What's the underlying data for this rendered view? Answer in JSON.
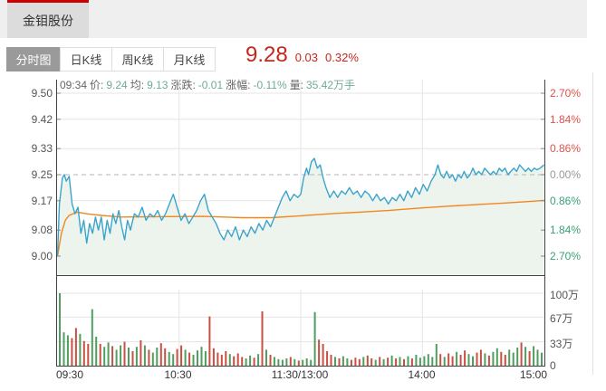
{
  "window": {
    "stock_tab_label": "金钼股份"
  },
  "tabs": {
    "items": [
      {
        "name": "tab-minute-chart",
        "label": "分时图",
        "active": true
      },
      {
        "name": "tab-daily-k",
        "label": "日K线",
        "active": false
      },
      {
        "name": "tab-weekly-k",
        "label": "周K线",
        "active": false
      },
      {
        "name": "tab-monthly-k",
        "label": "月K线",
        "active": false
      }
    ]
  },
  "quote": {
    "price": "9.28",
    "change": "0.03",
    "change_pct": "0.32%"
  },
  "info_line": {
    "time": "09:34",
    "fields": [
      {
        "label": "价:",
        "value": "9.24"
      },
      {
        "label": "均:",
        "value": "9.13"
      },
      {
        "label": "涨跌:",
        "value": "-0.01"
      },
      {
        "label": "涨幅:",
        "value": "-0.11%"
      },
      {
        "label": "量:",
        "value": "35.42万手"
      }
    ]
  },
  "axes": {
    "price_labels": [
      "9.50",
      "9.42",
      "9.33",
      "9.25",
      "9.17",
      "9.08",
      "9.00"
    ],
    "pct_labels": [
      {
        "text": "2.70%",
        "tone": "up"
      },
      {
        "text": "1.84%",
        "tone": "up"
      },
      {
        "text": "0.86%",
        "tone": "up"
      },
      {
        "text": "0.00%",
        "tone": "flat"
      },
      {
        "text": "0.86%",
        "tone": "down"
      },
      {
        "text": "1.84%",
        "tone": "down"
      },
      {
        "text": "2.70%",
        "tone": "down"
      }
    ],
    "volume_labels": [
      {
        "text": "100万",
        "value": 100
      },
      {
        "text": "67万",
        "value": 67
      },
      {
        "text": "33万",
        "value": 33
      },
      {
        "text": "0",
        "value": 0
      }
    ],
    "time_labels": [
      "09:30",
      "10:30",
      "11:30/13:00",
      "14:00",
      "15:00"
    ]
  },
  "colors": {
    "accent_red": "#cc0000",
    "quote_red": "#c5271d",
    "price_line": "#3ba4cb",
    "avg_line": "#f0881c",
    "area_fill": "#edf4ee",
    "vol_up": "#4f9d5f",
    "vol_down": "#c94f43",
    "grid": "#e5e5e5",
    "prev_close_dash": "#b3b3b3",
    "pane_border": "#424242"
  },
  "chart_data": {
    "type": "line",
    "title": "金钼股份 分时图 (intraday)",
    "prev_close": 9.25,
    "last_price": 9.28,
    "ylim": [
      9.0,
      9.5
    ],
    "pct_range": [
      -2.7,
      2.7
    ],
    "volume_ylim_wan": [
      0,
      105
    ],
    "x_range": [
      "09:30",
      "15:00"
    ],
    "grid": true,
    "price_series": [
      [
        0.0,
        9.0
      ],
      [
        0.004,
        9.16
      ],
      [
        0.01,
        9.24
      ],
      [
        0.014,
        9.25
      ],
      [
        0.018,
        9.23
      ],
      [
        0.024,
        9.245
      ],
      [
        0.03,
        9.16
      ],
      [
        0.036,
        9.13
      ],
      [
        0.042,
        9.15
      ],
      [
        0.048,
        9.07
      ],
      [
        0.054,
        9.11
      ],
      [
        0.06,
        9.04
      ],
      [
        0.066,
        9.1
      ],
      [
        0.072,
        9.07
      ],
      [
        0.078,
        9.12
      ],
      [
        0.084,
        9.08
      ],
      [
        0.09,
        9.12
      ],
      [
        0.096,
        9.05
      ],
      [
        0.102,
        9.11
      ],
      [
        0.108,
        9.07
      ],
      [
        0.114,
        9.13
      ],
      [
        0.12,
        9.1
      ],
      [
        0.126,
        9.14
      ],
      [
        0.132,
        9.09
      ],
      [
        0.138,
        9.05
      ],
      [
        0.144,
        9.11
      ],
      [
        0.15,
        9.08
      ],
      [
        0.158,
        9.13
      ],
      [
        0.166,
        9.12
      ],
      [
        0.174,
        9.15
      ],
      [
        0.182,
        9.11
      ],
      [
        0.19,
        9.13
      ],
      [
        0.198,
        9.12
      ],
      [
        0.206,
        9.14
      ],
      [
        0.214,
        9.11
      ],
      [
        0.222,
        9.13
      ],
      [
        0.23,
        9.16
      ],
      [
        0.238,
        9.19
      ],
      [
        0.246,
        9.15
      ],
      [
        0.254,
        9.11
      ],
      [
        0.262,
        9.13
      ],
      [
        0.27,
        9.1
      ],
      [
        0.278,
        9.12
      ],
      [
        0.286,
        9.14
      ],
      [
        0.294,
        9.17
      ],
      [
        0.302,
        9.19
      ],
      [
        0.31,
        9.14
      ],
      [
        0.318,
        9.12
      ],
      [
        0.326,
        9.1
      ],
      [
        0.334,
        9.07
      ],
      [
        0.342,
        9.05
      ],
      [
        0.35,
        9.08
      ],
      [
        0.358,
        9.06
      ],
      [
        0.366,
        9.09
      ],
      [
        0.374,
        9.05
      ],
      [
        0.382,
        9.08
      ],
      [
        0.39,
        9.06
      ],
      [
        0.398,
        9.09
      ],
      [
        0.406,
        9.07
      ],
      [
        0.414,
        9.1
      ],
      [
        0.422,
        9.08
      ],
      [
        0.43,
        9.11
      ],
      [
        0.438,
        9.09
      ],
      [
        0.446,
        9.12
      ],
      [
        0.454,
        9.15
      ],
      [
        0.462,
        9.18
      ],
      [
        0.47,
        9.2
      ],
      [
        0.478,
        9.17
      ],
      [
        0.486,
        9.19
      ],
      [
        0.494,
        9.18
      ],
      [
        0.5,
        9.19
      ],
      [
        0.506,
        9.24
      ],
      [
        0.512,
        9.27
      ],
      [
        0.516,
        9.25
      ],
      [
        0.522,
        9.29
      ],
      [
        0.528,
        9.3
      ],
      [
        0.534,
        9.27
      ],
      [
        0.54,
        9.28
      ],
      [
        0.546,
        9.24
      ],
      [
        0.552,
        9.21
      ],
      [
        0.56,
        9.18
      ],
      [
        0.568,
        9.2
      ],
      [
        0.576,
        9.18
      ],
      [
        0.584,
        9.2
      ],
      [
        0.592,
        9.19
      ],
      [
        0.6,
        9.21
      ],
      [
        0.608,
        9.19
      ],
      [
        0.616,
        9.2
      ],
      [
        0.624,
        9.18
      ],
      [
        0.632,
        9.2
      ],
      [
        0.64,
        9.19
      ],
      [
        0.648,
        9.17
      ],
      [
        0.656,
        9.19
      ],
      [
        0.664,
        9.17
      ],
      [
        0.672,
        9.18
      ],
      [
        0.68,
        9.16
      ],
      [
        0.688,
        9.18
      ],
      [
        0.696,
        9.17
      ],
      [
        0.704,
        9.19
      ],
      [
        0.712,
        9.17
      ],
      [
        0.72,
        9.2
      ],
      [
        0.728,
        9.18
      ],
      [
        0.736,
        9.21
      ],
      [
        0.744,
        9.19
      ],
      [
        0.752,
        9.22
      ],
      [
        0.76,
        9.2
      ],
      [
        0.768,
        9.23
      ],
      [
        0.776,
        9.25
      ],
      [
        0.782,
        9.28
      ],
      [
        0.788,
        9.25
      ],
      [
        0.794,
        9.24
      ],
      [
        0.8,
        9.26
      ],
      [
        0.806,
        9.24
      ],
      [
        0.812,
        9.25
      ],
      [
        0.818,
        9.23
      ],
      [
        0.824,
        9.25
      ],
      [
        0.83,
        9.24
      ],
      [
        0.836,
        9.26
      ],
      [
        0.842,
        9.24
      ],
      [
        0.848,
        9.25
      ],
      [
        0.854,
        9.27
      ],
      [
        0.86,
        9.25
      ],
      [
        0.866,
        9.26
      ],
      [
        0.872,
        9.25
      ],
      [
        0.878,
        9.27
      ],
      [
        0.884,
        9.26
      ],
      [
        0.89,
        9.25
      ],
      [
        0.896,
        9.26
      ],
      [
        0.902,
        9.25
      ],
      [
        0.908,
        9.27
      ],
      [
        0.914,
        9.26
      ],
      [
        0.92,
        9.27
      ],
      [
        0.926,
        9.25
      ],
      [
        0.932,
        9.26
      ],
      [
        0.938,
        9.27
      ],
      [
        0.944,
        9.26
      ],
      [
        0.95,
        9.28
      ],
      [
        0.956,
        9.27
      ],
      [
        0.962,
        9.26
      ],
      [
        0.968,
        9.27
      ],
      [
        0.974,
        9.26
      ],
      [
        0.98,
        9.27
      ],
      [
        0.986,
        9.265
      ],
      [
        0.992,
        9.27
      ],
      [
        1.0,
        9.28
      ]
    ],
    "avg_series": [
      [
        0.0,
        9.0
      ],
      [
        0.008,
        9.07
      ],
      [
        0.016,
        9.11
      ],
      [
        0.024,
        9.125
      ],
      [
        0.04,
        9.135
      ],
      [
        0.06,
        9.13
      ],
      [
        0.09,
        9.125
      ],
      [
        0.13,
        9.12
      ],
      [
        0.2,
        9.121
      ],
      [
        0.3,
        9.122
      ],
      [
        0.38,
        9.118
      ],
      [
        0.44,
        9.118
      ],
      [
        0.5,
        9.124
      ],
      [
        0.56,
        9.13
      ],
      [
        0.62,
        9.135
      ],
      [
        0.68,
        9.14
      ],
      [
        0.74,
        9.147
      ],
      [
        0.8,
        9.153
      ],
      [
        0.86,
        9.158
      ],
      [
        0.92,
        9.163
      ],
      [
        0.96,
        9.167
      ],
      [
        1.0,
        9.171
      ]
    ],
    "volume_wan": [
      100,
      46,
      42,
      38,
      52,
      44,
      34,
      30,
      78,
      40,
      30,
      26,
      32,
      27,
      22,
      28,
      33,
      25,
      20,
      26,
      35,
      28,
      22,
      18,
      25,
      31,
      24,
      19,
      16,
      23,
      28,
      22,
      18,
      15,
      21,
      26,
      20,
      68,
      24,
      18,
      15,
      20,
      16,
      13,
      17,
      12,
      10,
      14,
      11,
      16,
      75,
      22,
      15,
      12,
      9,
      8,
      10,
      12,
      9,
      7,
      8,
      10,
      8,
      74,
      36,
      30,
      20,
      15,
      12,
      10,
      13,
      10,
      8,
      11,
      9,
      12,
      14,
      10,
      8,
      12,
      9,
      11,
      14,
      10,
      12,
      9,
      13,
      10,
      15,
      11,
      13,
      16,
      12,
      30,
      16,
      12,
      17,
      13,
      19,
      15,
      21,
      16,
      13,
      18,
      22,
      17,
      14,
      19,
      24,
      19,
      15,
      22,
      18,
      25,
      32,
      26,
      20,
      27,
      22,
      18
    ]
  }
}
